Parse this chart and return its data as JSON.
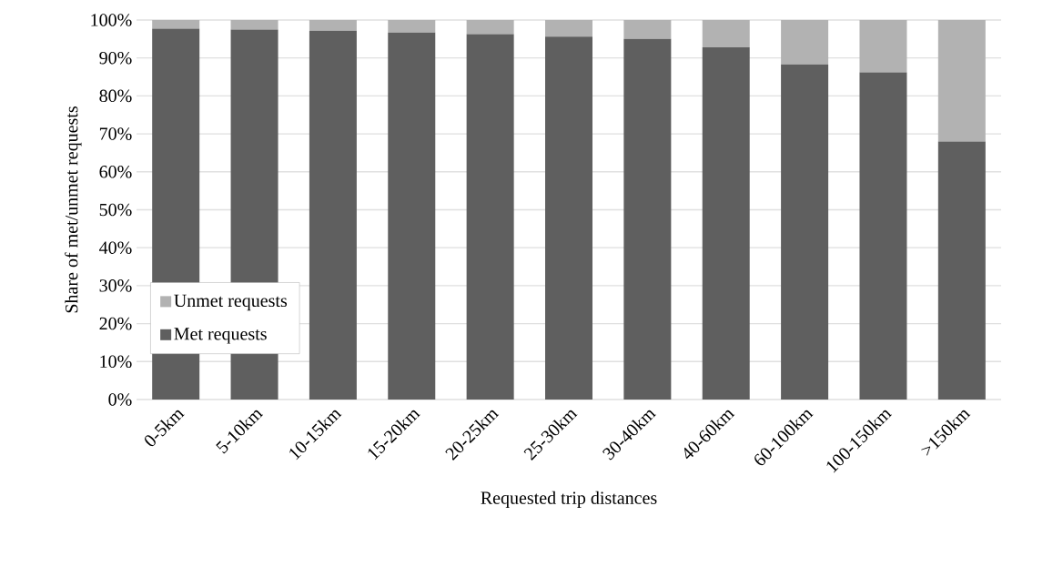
{
  "chart_data": {
    "type": "bar",
    "stacked": true,
    "xlabel": "Requested trip distances",
    "ylabel": "Share of met/unmet requests",
    "categories": [
      "0-5km",
      "5-10km",
      "10-15km",
      "15-20km",
      "20-25km",
      "25-30km",
      "30-40km",
      "40-60km",
      "60-100km",
      "100-150km",
      ">150km"
    ],
    "series": [
      {
        "name": "Met requests",
        "color": "#5f5f5f",
        "values": [
          97.7,
          97.5,
          97.2,
          96.7,
          96.3,
          95.6,
          95.0,
          92.8,
          88.3,
          86.2,
          68.0
        ]
      },
      {
        "name": "Unmet requests",
        "color": "#b2b2b2",
        "values": [
          2.3,
          2.5,
          2.8,
          3.3,
          3.7,
          4.4,
          5.0,
          7.2,
          11.7,
          13.8,
          32.0
        ]
      }
    ],
    "ylim": [
      0,
      100
    ],
    "yticks": [
      {
        "value": 0,
        "label": "0%"
      },
      {
        "value": 10,
        "label": "10%"
      },
      {
        "value": 20,
        "label": "20%"
      },
      {
        "value": 30,
        "label": "30%"
      },
      {
        "value": 40,
        "label": "40%"
      },
      {
        "value": 50,
        "label": "50%"
      },
      {
        "value": 60,
        "label": "60%"
      },
      {
        "value": 70,
        "label": "70%"
      },
      {
        "value": 80,
        "label": "80%"
      },
      {
        "value": 90,
        "label": "90%"
      },
      {
        "value": 100,
        "label": "100%"
      }
    ],
    "grid": "y",
    "legend": "bottom left"
  }
}
